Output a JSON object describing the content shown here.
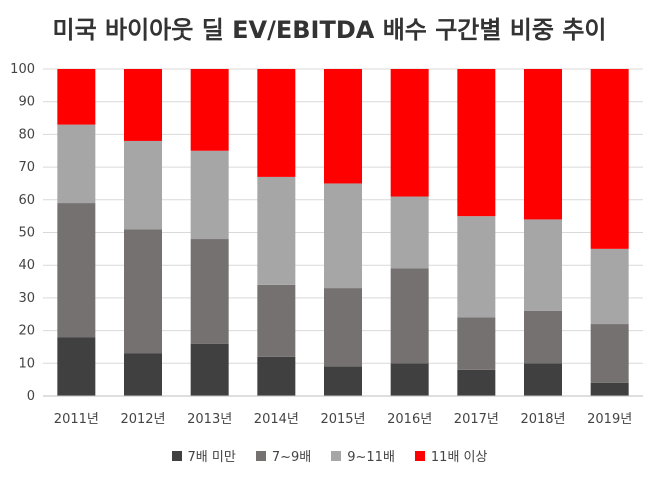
{
  "chart_data": {
    "type": "bar",
    "stacked": true,
    "title": "미국 바이아웃 딜 EV/EBITDA 배수 구간별 비중 추이",
    "xlabel": "",
    "ylabel": "",
    "ylim": [
      0,
      100
    ],
    "yticks": [
      "0",
      "10",
      "20",
      "30",
      "40",
      "50",
      "60",
      "70",
      "80",
      "90",
      "100"
    ],
    "grid": true,
    "legend_position": "bottom",
    "categories": [
      "2011년",
      "2012년",
      "2013년",
      "2014년",
      "2015년",
      "2016년",
      "2017년",
      "2018년",
      "2019년"
    ],
    "series": [
      {
        "name": "7배 미만",
        "color": "#404040",
        "values": [
          18,
          13,
          16,
          12,
          9,
          10,
          8,
          10,
          4
        ]
      },
      {
        "name": "7~9배",
        "color": "#767171",
        "values": [
          41,
          38,
          32,
          22,
          24,
          29,
          16,
          16,
          18
        ]
      },
      {
        "name": "9~11배",
        "color": "#a6a6a6",
        "values": [
          24,
          27,
          27,
          33,
          32,
          22,
          31,
          28,
          23
        ]
      },
      {
        "name": "11배 이상",
        "color": "#ff0000",
        "values": [
          17,
          22,
          25,
          33,
          35,
          39,
          45,
          46,
          55
        ]
      }
    ]
  }
}
